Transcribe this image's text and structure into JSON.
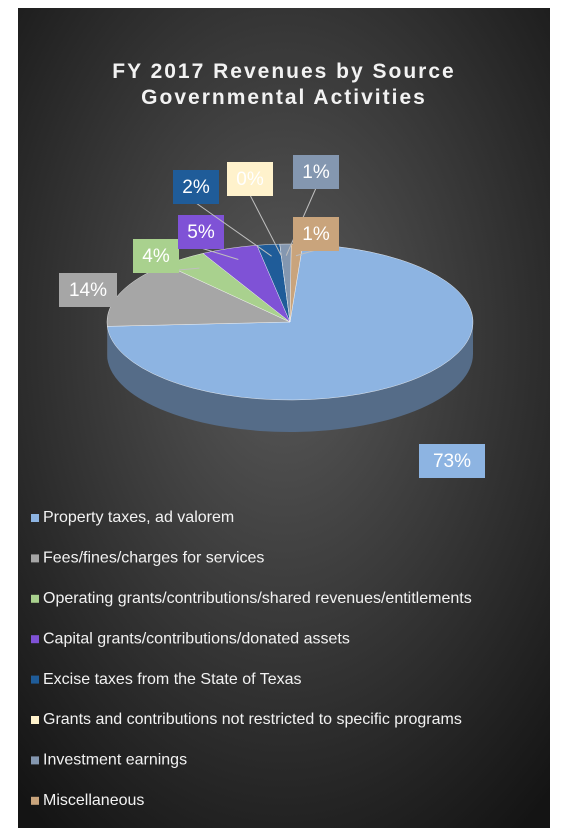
{
  "chart_data": {
    "type": "pie3d",
    "title": [
      "FY 2017 Revenues by Source",
      "Governmental Activities"
    ],
    "categories": [
      "Property taxes, ad valorem",
      "Fees/fines/charges for services",
      "Operating grants/contributions/shared revenues/entitlements",
      "Capital grants/contributions/donated assets",
      "Excise taxes from the State of Texas",
      "Grants and contributions not restricted to specific programs",
      "Investment earnings",
      "Miscellaneous"
    ],
    "values": [
      73,
      14,
      4,
      5,
      2,
      0,
      1,
      1
    ],
    "value_labels": [
      "73%",
      "14%",
      "4%",
      "5%",
      "2%",
      "0%",
      "1%",
      "1%"
    ],
    "colors": [
      "#8db4e2",
      "#a6a6a6",
      "#a9d18e",
      "#7f52d6",
      "#1f5c99",
      "#fff2cc",
      "#8497b0",
      "#c9a47c"
    ],
    "legend": "bottom"
  }
}
